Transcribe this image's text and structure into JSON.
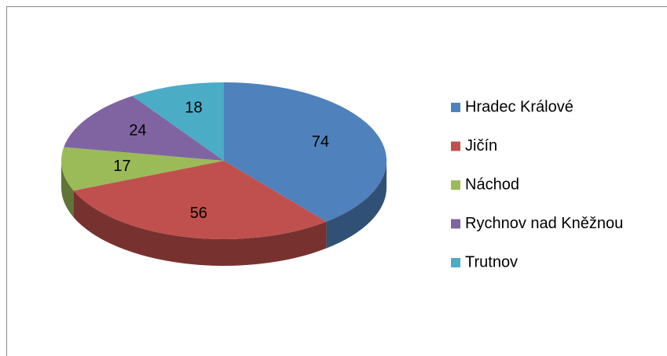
{
  "chart_data": {
    "type": "pie3d",
    "categories": [
      "Hradec Králové",
      "Jičín",
      "Náchod",
      "Rychnov nad Kněžnou",
      "Trutnov"
    ],
    "values": [
      74,
      56,
      17,
      24,
      18
    ],
    "colors": [
      "#4f81bd",
      "#c0504d",
      "#9bbb59",
      "#8064a2",
      "#4bacc6"
    ],
    "legend": "right"
  }
}
